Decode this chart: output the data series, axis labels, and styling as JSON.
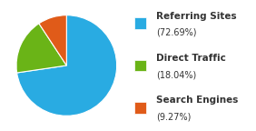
{
  "legend_labels": [
    "Referring Sites",
    "Direct Traffic",
    "Search Engines"
  ],
  "legend_pcts": [
    "(72.69%)",
    "(18.04%)",
    "(9.27%)"
  ],
  "values": [
    72.69,
    18.04,
    9.27
  ],
  "colors": [
    "#29ABE2",
    "#6AB417",
    "#E05B19"
  ],
  "startangle": 90,
  "background_color": "#ffffff",
  "name_fontsize": 7.5,
  "pct_fontsize": 7.0,
  "label_color": "#333333"
}
